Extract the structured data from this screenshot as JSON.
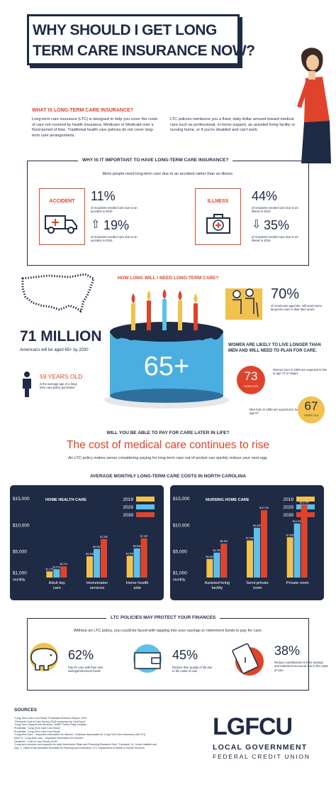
{
  "title": {
    "line1": "WHY SHOULD I GET LONG",
    "line2": "TERM CARE INSURANCE NOW?"
  },
  "what_is": {
    "heading": "WHAT IS LONG-TERM CARE INSURANCE?",
    "left": "Long-term care insurance (LTC) is designed to help you cover the costs of care not covered by health insurance, Medicare or Medicaid over a fixed period of time. Traditional health care policies do not cover long-term care arrangements.",
    "right": "LTC policies reimburse you a fixed, daily dollar amount toward medical care such as professional, in-home support, an assisted living facility or nursing home, or if you're disabled and can't work."
  },
  "why": {
    "heading": "WHY IS IT IMPORTANT TO HAVE LONG-TERM CARE INSURANCE?",
    "subtitle": "More people need long-term care due to an accident rather than an illness.",
    "accident": {
      "label": "ACCIDENT",
      "stat1": "11%",
      "desc1": "of recipients needed care due to an accident in 2010",
      "stat2": "19%",
      "desc2": "of recipients needed care due to an accident in 2015"
    },
    "illness": {
      "label": "ILLNESS",
      "stat1": "44%",
      "desc1": "of recipients needed care due to an illness in 2010",
      "stat2": "35%",
      "desc2": "of recipients needed care due to an illness in 2015"
    }
  },
  "how_long": {
    "heading": "HOW LONG WILL I NEED LONG-TERM CARE?",
    "million": "71 MILLION",
    "million_desc": "Americans will be aged 65+ by 2030",
    "cake_label": "65+",
    "age59": "59 YEARS OLD",
    "age59_desc": "is the average age of a long-term care policy purchaser",
    "pct70": "70%",
    "pct70_desc": "of Americans aged 65+ will need some long-term care in their later years.",
    "women_heading": "WOMEN ARE LIKELY TO LIVE LONGER THAN MEN AND WILL NEED TO PLAN FOR CARE.",
    "women_desc": "Women born in 1960 are expected to live to age 73 or longer",
    "women_age": "73",
    "years_old": "YEARS OLD",
    "men_desc": "Men born in 1960 are expected to live to age 67",
    "men_age": "67"
  },
  "cost": {
    "question": "WILL YOU BE ABLE TO PAY FOR CARE LATER IN LIFE?",
    "headline": "The cost of medical care continues to rise",
    "subtitle": "An LTC policy makes sense considering paying for long-term care out of pocket can quickly reduce your nest egg."
  },
  "chart_heading": "AVERAGE MONTHLY LONG-TERM CARE COSTS IN NORTH CAROLINA",
  "colors": {
    "y2019": "#f2c14e",
    "y2029": "#5bc0eb",
    "y2039": "#e0432b",
    "navy": "#1f2a44",
    "red": "#e0432b"
  },
  "chart_data": [
    {
      "type": "bar",
      "title": "HOME HEALTH CARE",
      "categories": [
        "Adult day care",
        "Homemaker services",
        "Home health aide"
      ],
      "series": [
        {
          "name": "2019",
          "values": [
            1170,
            3995,
            4093
          ]
        },
        {
          "name": "2029",
          "values": [
            1572,
            5387,
            5503
          ]
        },
        {
          "name": "2039",
          "values": [
            2113,
            7250,
            7397
          ]
        }
      ],
      "value_labels": [
        [
          "$1,170",
          "$1,572",
          "$2,113"
        ],
        [
          "$3,995",
          "$5,387",
          "$7,250"
        ],
        [
          "$4,093",
          "$5,503",
          "$7,397"
        ]
      ],
      "yticks": [
        "$15,000",
        "$10,000",
        "$5,000",
        "$1,000"
      ],
      "ylabel": "monthly",
      "ylim": [
        0,
        15000
      ]
    },
    {
      "type": "bar",
      "title": "NURSING HOME CARE",
      "categories": [
        "Assisted living facility",
        "Semi-private room",
        "Private room"
      ],
      "series": [
        {
          "name": "2019",
          "values": [
            3500,
            7000,
            7600
          ]
        },
        {
          "name": "2029",
          "values": [
            4700,
            9400,
            10200
          ]
        },
        {
          "name": "2039",
          "values": [
            6400,
            12700,
            13700
          ]
        }
      ],
      "value_labels": [
        [
          "$3,500",
          "$4,700",
          "$6,400"
        ],
        [
          "$7,000",
          "$9,400",
          "$12,700"
        ],
        [
          "$7,600",
          "$10,200",
          "$13,700"
        ]
      ],
      "yticks": [
        "$15,000",
        "$10,000",
        "$5,000",
        "$1,000"
      ],
      "ylabel": "monthly",
      "ylim": [
        0,
        15000
      ]
    }
  ],
  "protect": {
    "heading": "LTC POLICIES MAY PROTECT YOUR FINANCES",
    "subtitle": "Without an LTC policy, you could be faced with tapping into your savings or retirement funds to pay for care.",
    "s1": "62%",
    "d1": "Pay for care with their own savings/retirement funds",
    "s2": "45%",
    "d2": "Reduce their quality of life due to the costs of care",
    "s3": "38%",
    "d3": "Reduce contributions to their savings and retirement accounts due to the costs of care"
  },
  "sources": {
    "heading": "SOURCES",
    "lines": [
      "\"Long-Term Care Cost Study\" Prudential Research Report, 2010",
      "\"Genworth Cost of Care Survey 2018 conducted by CareScout\"",
      "\"Long-Term Support and Services,\" AARP Public Policy Institute",
      "Prudential, \"Long-Term Care Cost Study\"",
      "Prudential, \"Long-Term Care Cost Study\"",
      "\"Long-term Care – Important Information for Women,\" American Association for Long-Term Care Insurance (AALTCI)",
      "AALTCI, \"Long-term care – Important Information for Women\"",
      "Genworth, \"Cost of Care Survey 2018,\"",
      "\"Long-term services and supports for older Americans: Risks and Financing Research Brief.\" Favreault, M.; Urban Institute and",
      "Dey, J., Office of the Assistant Secretary for Planning and Evaluation, U.S. Department of Health & Human Services"
    ]
  },
  "logo": {
    "text": "LGFCU",
    "line1": "LOCAL GOVERNMENT",
    "line2": "FEDERAL CREDIT UNION"
  }
}
